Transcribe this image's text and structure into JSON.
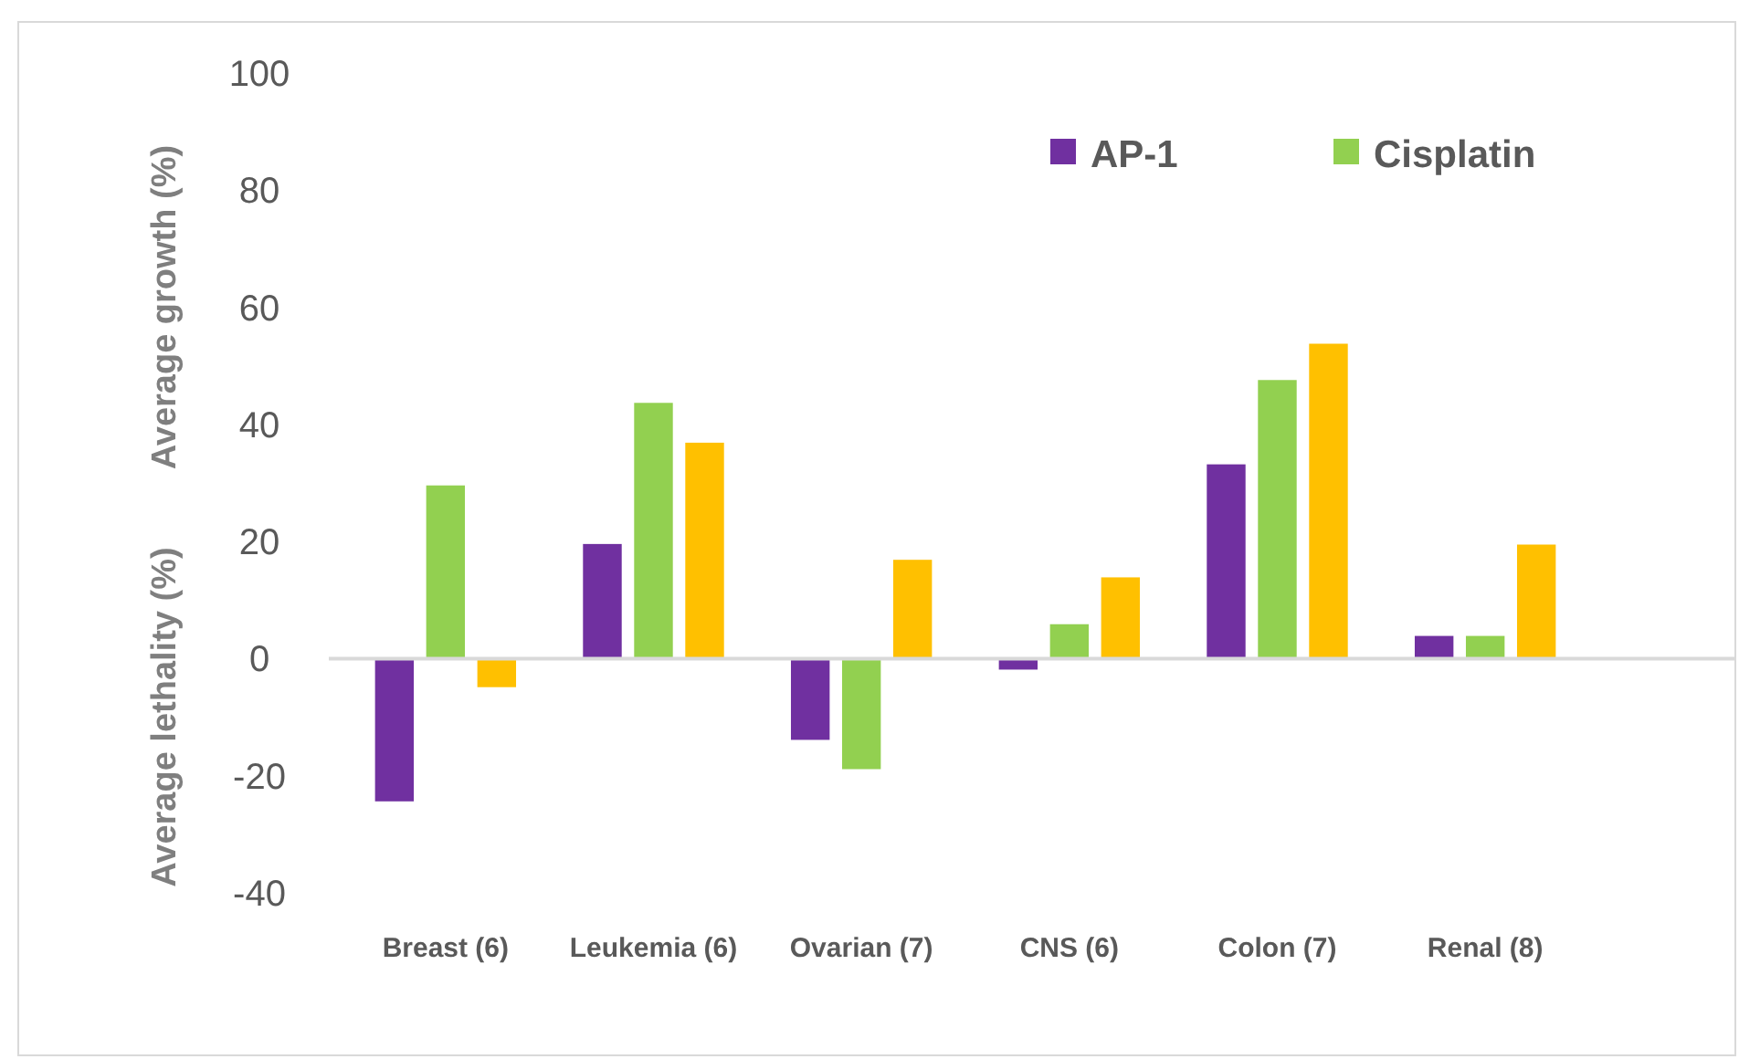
{
  "chart_data": {
    "type": "bar",
    "ylabel": "Average growth (%)",
    "annotations": [
      "Average lethality (%)"
    ],
    "categories": [
      "Breast (6)",
      "Leukemia (6)",
      "Ovarian (7)",
      "CNS (6)",
      "Colon (7)",
      "Renal (8)"
    ],
    "series": [
      {
        "name": "AP-1",
        "color": "#7030a0",
        "values": [
          -24.5,
          19.7,
          -14,
          -2,
          33.3,
          4
        ]
      },
      {
        "name": "Cisplatin",
        "color": "#92d050",
        "values": [
          29.7,
          43.8,
          -19,
          6,
          47.7,
          4
        ]
      },
      {
        "color": "#ffc000",
        "values": [
          -5,
          37,
          17,
          14,
          53.9,
          19.6
        ]
      }
    ],
    "ylim": [
      -40,
      100
    ],
    "yticks": [
      -40,
      -20,
      0,
      20,
      40,
      60,
      80,
      100
    ],
    "legend": "top"
  }
}
